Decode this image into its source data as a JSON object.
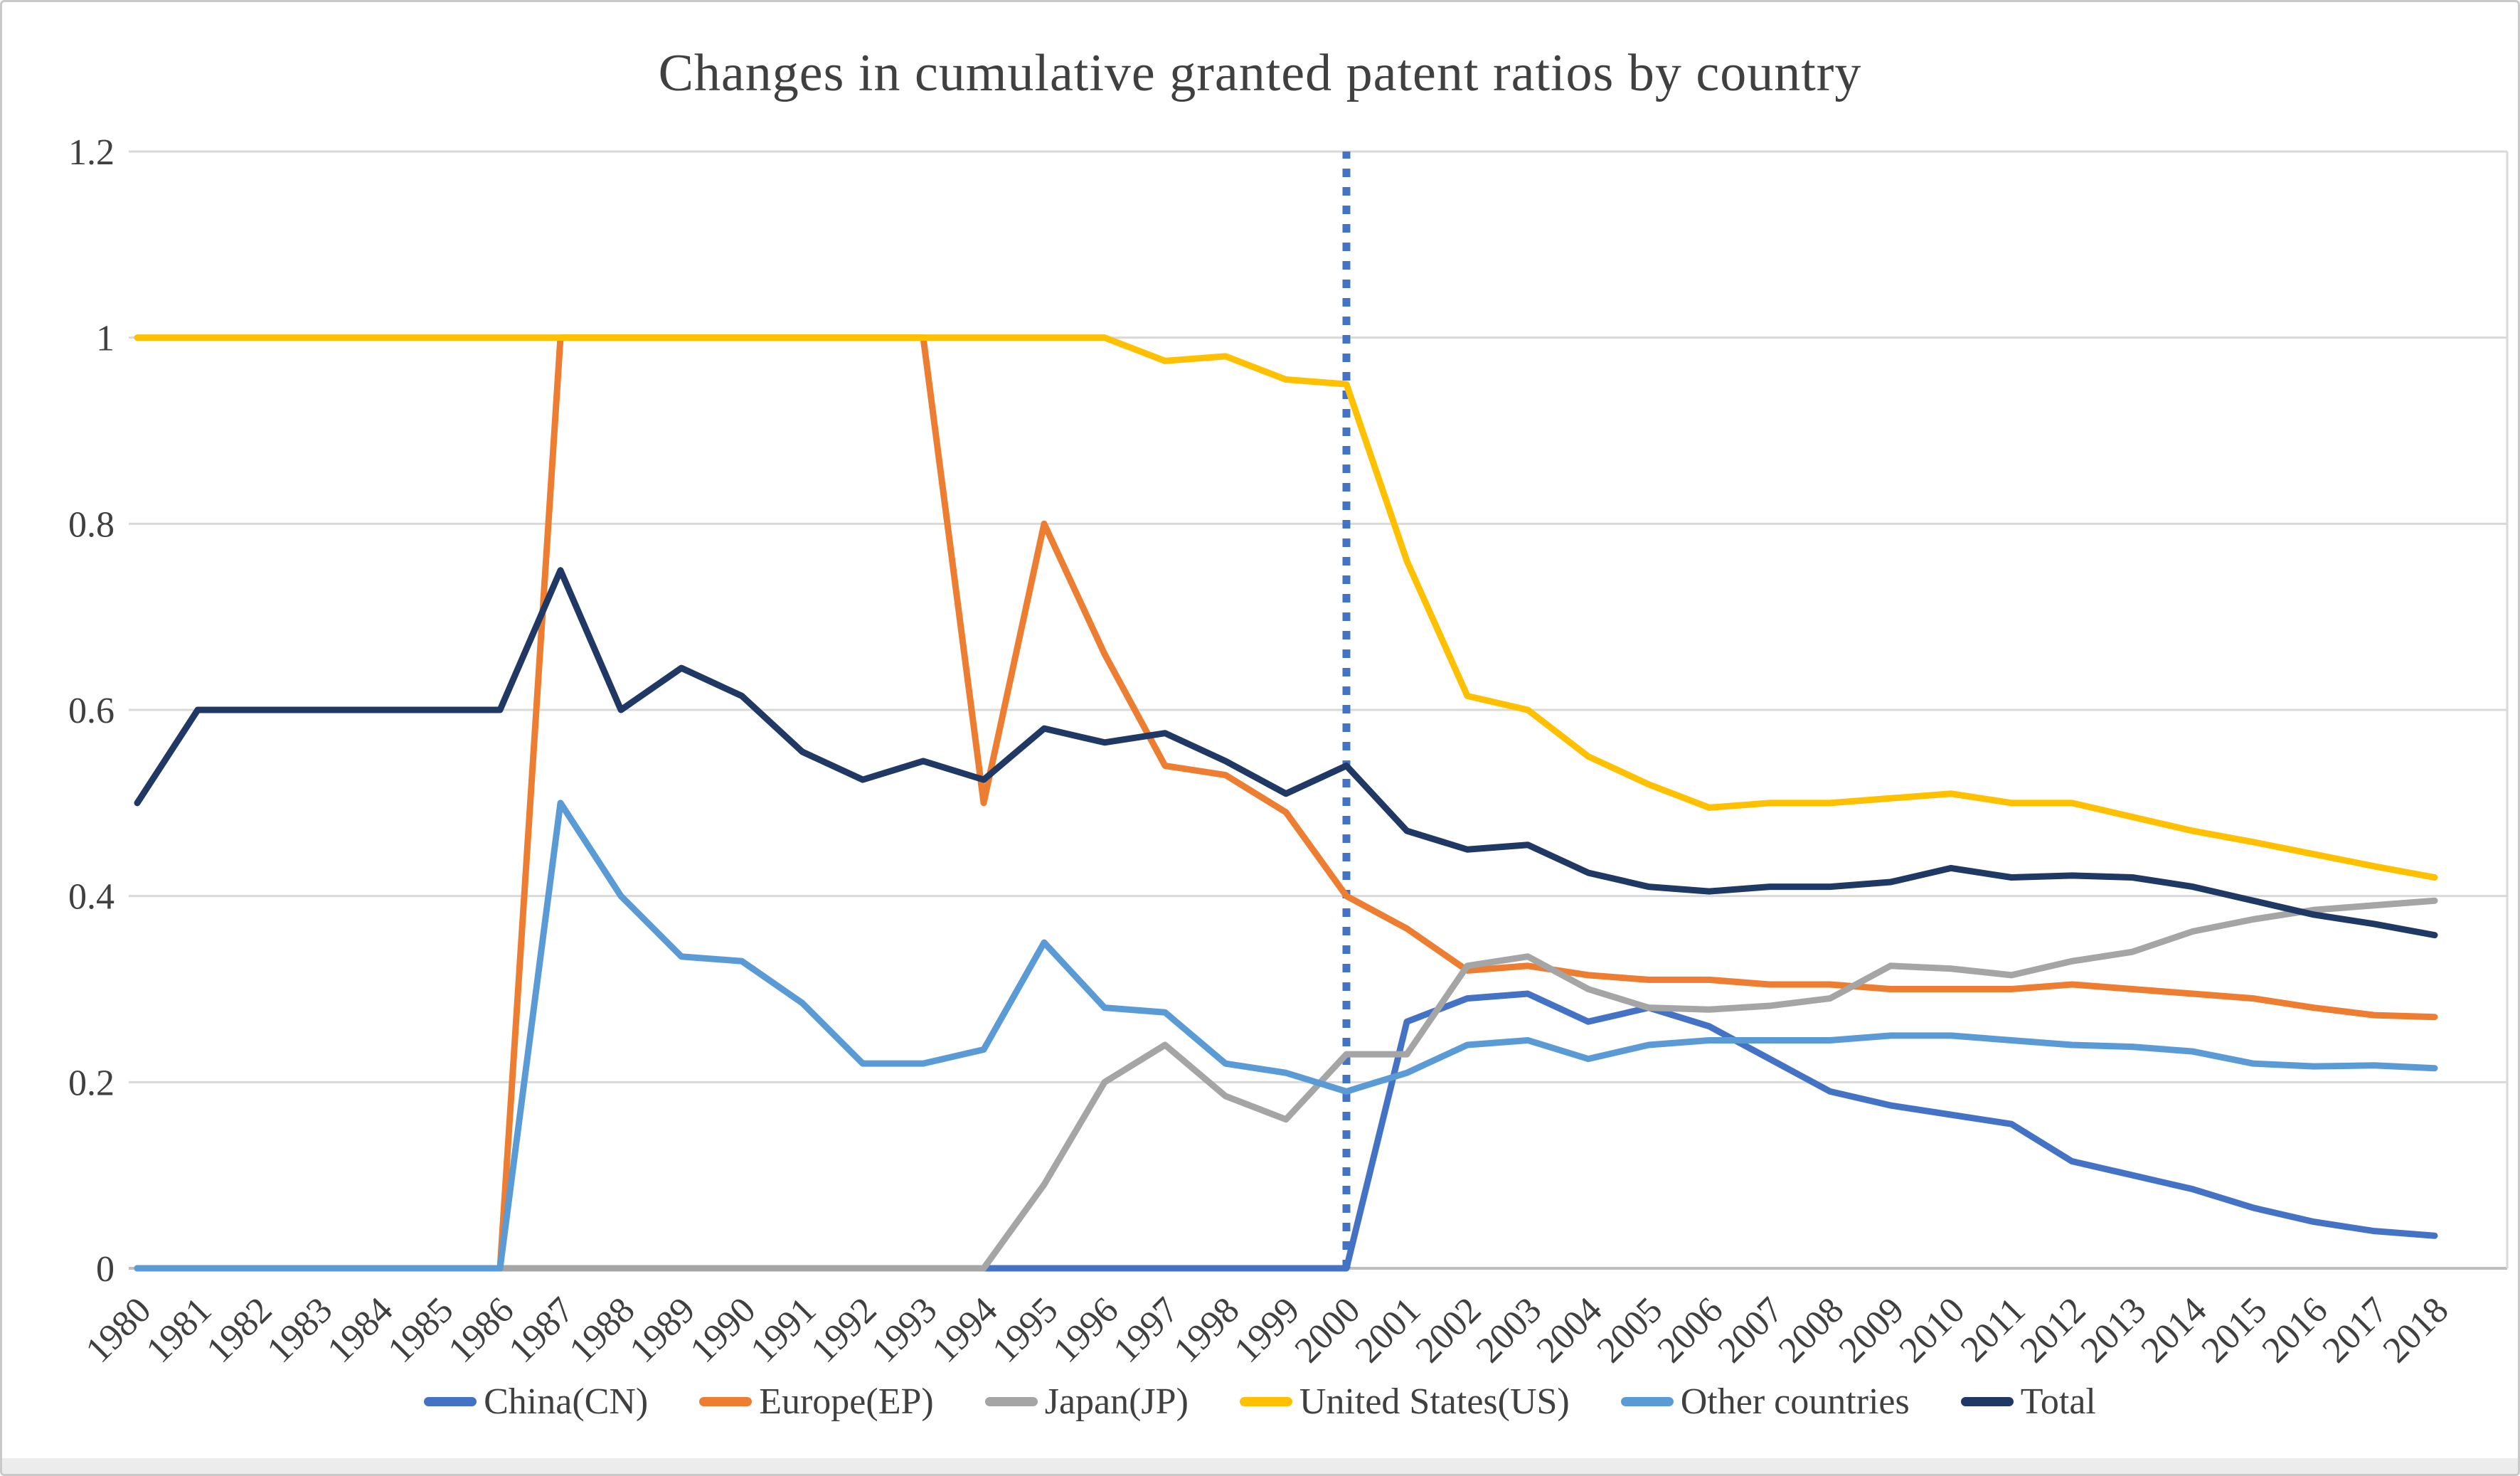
{
  "figure": {
    "title": "Changes in cumulative granted patent ratios by country"
  },
  "chart_data": {
    "type": "line",
    "title": "Changes in cumulative granted patent ratios by country",
    "xlabel": "",
    "ylabel": "",
    "x": [
      1980,
      1981,
      1982,
      1983,
      1984,
      1985,
      1986,
      1987,
      1988,
      1989,
      1990,
      1991,
      1992,
      1993,
      1994,
      1995,
      1996,
      1997,
      1998,
      1999,
      2000,
      2001,
      2002,
      2003,
      2004,
      2005,
      2006,
      2007,
      2008,
      2009,
      2010,
      2011,
      2012,
      2013,
      2014,
      2015,
      2016,
      2017,
      2018
    ],
    "ylim": [
      0,
      1.2
    ],
    "yticks": [
      0,
      0.2,
      0.4,
      0.6,
      0.8,
      1,
      1.2
    ],
    "ytick_labels": [
      "0",
      "0.2",
      "0.4",
      "0.6",
      "0.8",
      "1",
      "1.2"
    ],
    "grid": true,
    "legend_position": "bottom",
    "annotation": {
      "type": "vertical-dotted-line",
      "x": 2000,
      "color": "#4472C4"
    },
    "colors": {
      "gridline": "#d9d9d9",
      "axis_line": "#bfbfbf",
      "tick_text": "#404040",
      "title_text": "#404040"
    },
    "series": [
      {
        "name": "China(CN)",
        "color": "#4472C4",
        "values": [
          0,
          0,
          0,
          0,
          0,
          0,
          0,
          0,
          0,
          0,
          0,
          0,
          0,
          0,
          0,
          0,
          0,
          0,
          0,
          0,
          0,
          0.265,
          0.29,
          0.295,
          0.265,
          0.28,
          0.26,
          0.225,
          0.19,
          0.175,
          0.165,
          0.155,
          0.115,
          0.1,
          0.085,
          0.065,
          0.05,
          0.04,
          0.035
        ]
      },
      {
        "name": "Europe(EP)",
        "color": "#ED7D31",
        "values": [
          0,
          0,
          0,
          0,
          0,
          0,
          0,
          1,
          1,
          1,
          1,
          1,
          1,
          1,
          0.5,
          0.8,
          0.66,
          0.54,
          0.53,
          0.49,
          0.4,
          0.365,
          0.32,
          0.325,
          0.315,
          0.31,
          0.31,
          0.305,
          0.305,
          0.3,
          0.3,
          0.3,
          0.305,
          0.3,
          0.295,
          0.29,
          0.28,
          0.272,
          0.27
        ]
      },
      {
        "name": "Japan(JP)",
        "color": "#A5A5A5",
        "values": [
          0,
          0,
          0,
          0,
          0,
          0,
          0,
          0,
          0,
          0,
          0,
          0,
          0,
          0,
          0,
          0.09,
          0.2,
          0.24,
          0.185,
          0.16,
          0.23,
          0.23,
          0.325,
          0.335,
          0.3,
          0.28,
          0.278,
          0.282,
          0.29,
          0.325,
          0.322,
          0.315,
          0.33,
          0.34,
          0.362,
          0.375,
          0.385,
          0.39,
          0.395
        ]
      },
      {
        "name": "United States(US)",
        "color": "#FFC000",
        "values": [
          1,
          1,
          1,
          1,
          1,
          1,
          1,
          1,
          1,
          1,
          1,
          1,
          1,
          1,
          1,
          1,
          1,
          0.975,
          0.98,
          0.955,
          0.95,
          0.76,
          0.615,
          0.6,
          0.55,
          0.52,
          0.495,
          0.5,
          0.5,
          0.505,
          0.51,
          0.5,
          0.5,
          0.485,
          0.47,
          0.458,
          0.445,
          0.432,
          0.42
        ]
      },
      {
        "name": "Other countries",
        "color": "#5B9BD5",
        "values": [
          0,
          0,
          0,
          0,
          0,
          0,
          0,
          0.5,
          0.4,
          0.335,
          0.33,
          0.285,
          0.22,
          0.22,
          0.235,
          0.35,
          0.28,
          0.275,
          0.22,
          0.21,
          0.19,
          0.21,
          0.24,
          0.245,
          0.225,
          0.24,
          0.245,
          0.245,
          0.245,
          0.25,
          0.25,
          0.245,
          0.24,
          0.238,
          0.233,
          0.22,
          0.217,
          0.218,
          0.215
        ]
      },
      {
        "name": "Total",
        "color": "#1F3864",
        "values": [
          0.5,
          0.6,
          0.6,
          0.6,
          0.6,
          0.6,
          0.6,
          0.75,
          0.6,
          0.645,
          0.615,
          0.555,
          0.525,
          0.545,
          0.525,
          0.58,
          0.565,
          0.575,
          0.545,
          0.51,
          0.54,
          0.47,
          0.45,
          0.455,
          0.425,
          0.41,
          0.405,
          0.41,
          0.41,
          0.415,
          0.43,
          0.42,
          0.422,
          0.42,
          0.41,
          0.395,
          0.38,
          0.37,
          0.358
        ]
      }
    ]
  }
}
